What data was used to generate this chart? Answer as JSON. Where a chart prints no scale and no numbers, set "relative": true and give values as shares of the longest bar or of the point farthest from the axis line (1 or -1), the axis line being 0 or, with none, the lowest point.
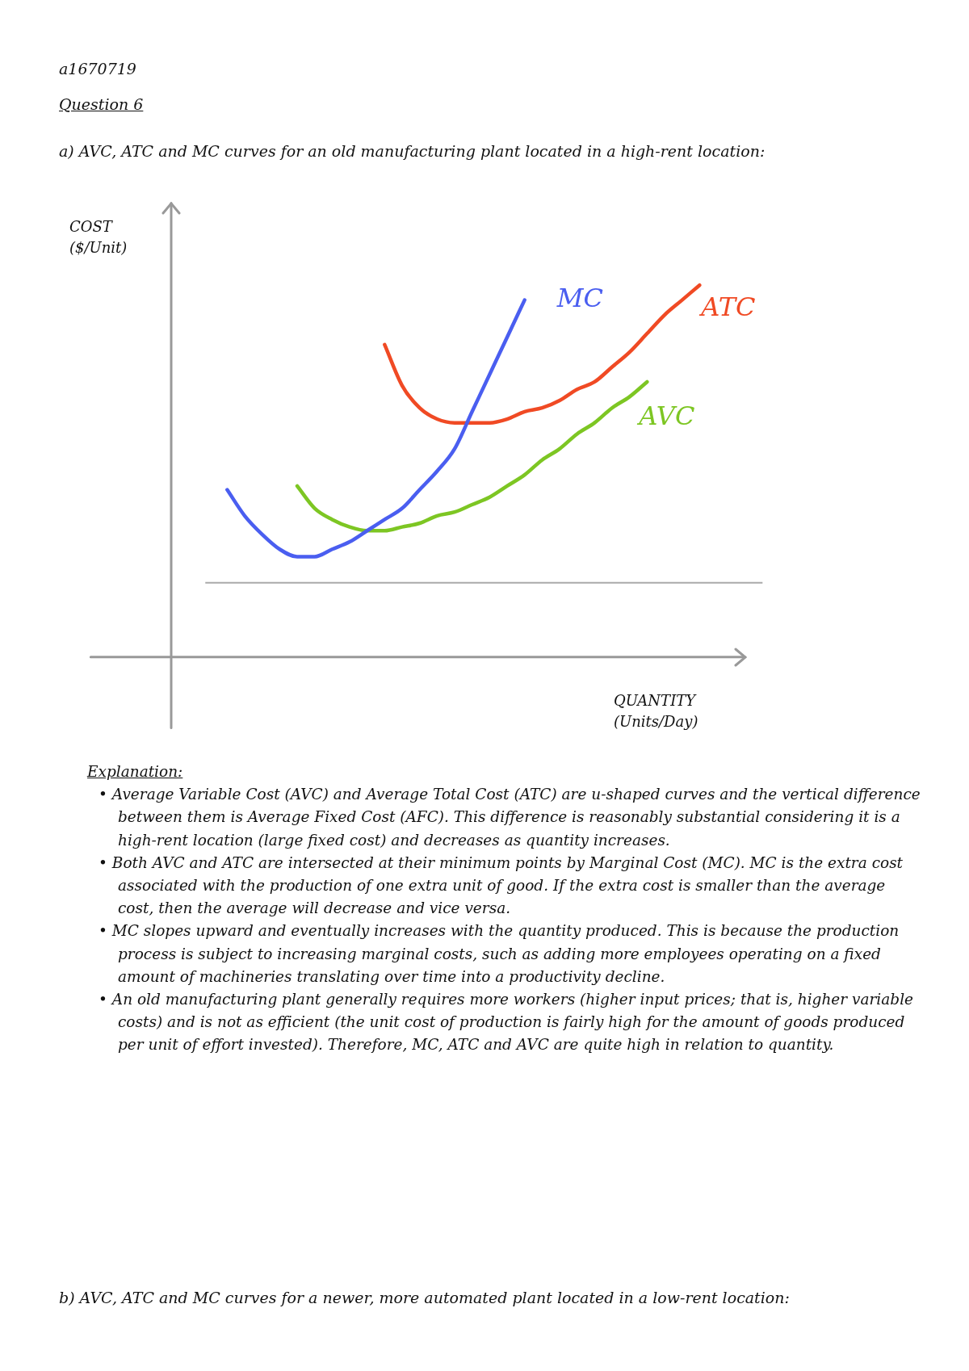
{
  "chart_data": {
    "type": "line",
    "relative": true,
    "title": "a) AVC, ATC and MC curves for an old manufacturing plant located in a high-rent location:",
    "xlabel": "QUANTITY\n(Units/Day)",
    "categories": [
      null,
      null,
      null,
      null,
      null,
      null,
      null,
      null,
      null,
      null,
      null,
      null,
      null,
      null,
      null,
      null,
      null,
      null,
      null,
      null,
      null,
      null,
      null,
      null,
      null,
      null,
      null,
      null
    ],
    "series": [
      {
        "name": "MC",
        "color": "#4a5ef0",
        "values": [
          0.45,
          0.38,
          0.33,
          0.29,
          0.27,
          0.27,
          0.29,
          0.31,
          0.34,
          0.37,
          0.4,
          0.45,
          0.5,
          0.56,
          0.66,
          0.76,
          0.86,
          0.96,
          null,
          null,
          null,
          null,
          null,
          null,
          null,
          null,
          null,
          null
        ]
      },
      {
        "name": "ATC",
        "color": "#f04a24",
        "values": [
          null,
          null,
          null,
          null,
          null,
          null,
          null,
          null,
          null,
          0.84,
          0.73,
          0.67,
          0.64,
          0.63,
          0.63,
          0.63,
          0.64,
          0.66,
          0.67,
          0.69,
          0.72,
          0.74,
          0.78,
          0.82,
          0.87,
          0.92,
          0.96,
          1
        ]
      },
      {
        "name": "AVC",
        "color": "#7dc623",
        "values": [
          null,
          null,
          null,
          null,
          0.46,
          0.4,
          0.37,
          0.35,
          0.34,
          0.34,
          0.35,
          0.36,
          0.38,
          0.39,
          0.41,
          0.43,
          0.46,
          0.49,
          0.53,
          0.56,
          0.6,
          0.63,
          0.67,
          0.7,
          0.74,
          null,
          null,
          null
        ]
      }
    ],
    "ref_lines": [
      {
        "axis": "y",
        "value": 0.2,
        "color": "#aaaaaa"
      }
    ],
    "legend": false,
    "marker": "none",
    "line_style": "solid",
    "annotations": [
      "a1670719",
      "Question 6",
      "COST\n($/Unit)",
      "Explanation:",
      "• Average Variable Cost (AVC) and Average Total Cost (ATC) are u-shaped curves and the vertical difference between them is Average Fixed Cost (AFC). This difference is reasonably substantial considering it is a high-rent location (large fixed cost) and decreases as quantity increases.",
      "• Both AVC and ATC are intersected at their minimum points by Marginal Cost (MC). MC is the extra cost associated with the production of one extra unit of good. If the extra cost is smaller than the average cost, then the average will decrease and vice versa.",
      "• MC slopes upward and eventually increases with the quantity produced. This is because the production process is subject to increasing marginal costs, such as adding more employees operating on a fixed amount of machineries translating over time into a productivity decline.",
      "• An old manufacturing plant generally requires more workers (higher input prices; that is, higher variable costs) and is not as efficient (the unit cost of production is fairly high for the amount of goods produced per unit of effort invested). Therefore, MC, ATC and AVC are quite high in relation to quantity.",
      "b) AVC, ATC and MC curves for a newer, more automated plant located in a low-rent location:"
    ]
  }
}
